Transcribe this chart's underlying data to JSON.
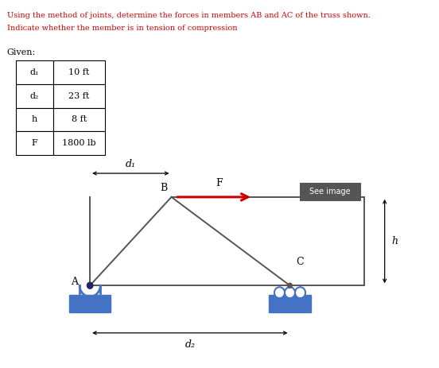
{
  "title_line1": "Using the method of joints, determine the forces in members AB and AC of the truss shown.",
  "title_line2": "Indicate whether the member is in tension of compression",
  "given_label": "Given:",
  "table_rows": [
    [
      "d₁",
      "10 ft"
    ],
    [
      "d₂",
      "23 ft"
    ],
    [
      "h",
      "8 ft"
    ],
    [
      "F",
      "1800 lb"
    ]
  ],
  "label_A": "A",
  "label_B": "B",
  "label_C": "C",
  "label_F": "F",
  "label_d1": "d₁",
  "label_d2": "d₂",
  "label_h": "h",
  "see_image_text": "See image",
  "title_color": "#cc0000",
  "body_color": "#000000",
  "arrow_color": "#cc0000",
  "support_color": "#4472c4",
  "truss_color": "#555555",
  "node_color": "#4472c4"
}
